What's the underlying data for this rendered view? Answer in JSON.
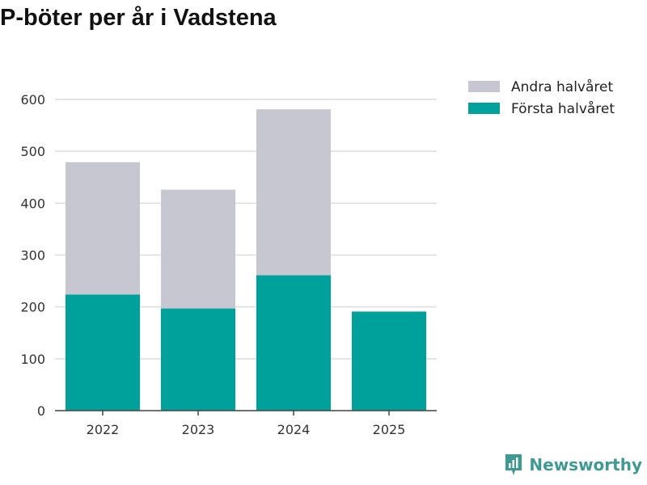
{
  "colors": {
    "forsta": "#00a19a",
    "andra": "#c7c7d1",
    "grid": "#dcdcdc",
    "axis": "#444444",
    "brand": "#3f9a93"
  },
  "brand": {
    "name": "Newsworthy",
    "icon": "newsworthy-logo-icon"
  },
  "chart_data": {
    "type": "bar",
    "stacked": true,
    "title": "P-böter per år i Vadstena",
    "xlabel": "",
    "ylabel": "",
    "categories": [
      "2022",
      "2023",
      "2024",
      "2025"
    ],
    "series": [
      {
        "name": "Första halvåret",
        "values": [
          224,
          197,
          261,
          191
        ],
        "color": "#00a19a"
      },
      {
        "name": "Andra halvåret",
        "values": [
          255,
          229,
          320,
          0
        ],
        "color": "#c7c7d1"
      }
    ],
    "ylim": [
      0,
      600
    ],
    "yticks": [
      0,
      100,
      200,
      300,
      400,
      500,
      600
    ],
    "grid": true,
    "legend": {
      "position": "top-right",
      "entries": [
        "Andra halvåret",
        "Första halvåret"
      ]
    }
  }
}
